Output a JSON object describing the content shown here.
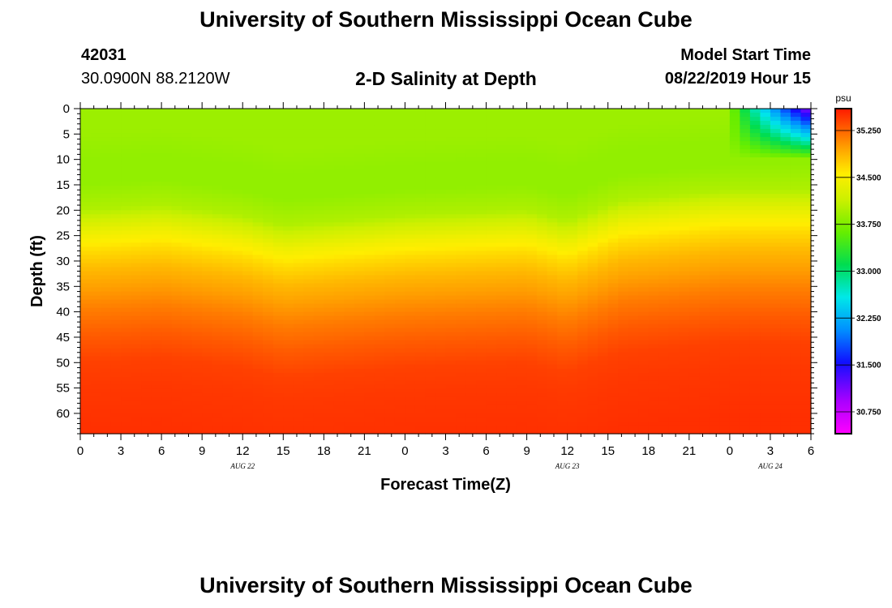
{
  "page_title": "University of Southern Mississippi Ocean Cube",
  "footer_title": "University of Southern Mississippi Ocean Cube",
  "station": {
    "id": "42031",
    "coords": "30.0900N 88.2120W"
  },
  "model": {
    "label": "Model Start Time",
    "start": "08/22/2019 Hour 15"
  },
  "chart_data": {
    "type": "heatmap",
    "title": "2-D Salinity at Depth",
    "xlabel": "Forecast Time(Z)",
    "ylabel": "Depth (ft)",
    "x_tick_labels": [
      "0",
      "3",
      "6",
      "9",
      "12",
      "15",
      "18",
      "21",
      "0",
      "3",
      "6",
      "9",
      "12",
      "15",
      "18",
      "21",
      "0",
      "3",
      "6"
    ],
    "x_hours_from_start": [
      0,
      3,
      6,
      9,
      12,
      15,
      18,
      21,
      24,
      27,
      30,
      33,
      36,
      39,
      42,
      45,
      48,
      51,
      54
    ],
    "date_labels": [
      {
        "label": "AUG 22",
        "hour": 12
      },
      {
        "label": "AUG 23",
        "hour": 36
      },
      {
        "label": "AUG 24",
        "hour": 51
      }
    ],
    "xlim_hours": [
      0,
      54
    ],
    "y_ticks": [
      0,
      5,
      10,
      15,
      20,
      25,
      30,
      35,
      40,
      45,
      50,
      55,
      60
    ],
    "ylim_ft": [
      0,
      64
    ],
    "y_inverted": true,
    "colorbar": {
      "unit": "psu",
      "ticks": [
        "35.250",
        "34.500",
        "33.750",
        "33.000",
        "32.250",
        "31.500",
        "30.750"
      ],
      "tick_values": [
        35.25,
        34.5,
        33.75,
        33.0,
        32.25,
        31.5,
        30.75
      ],
      "range": [
        30.4,
        35.6
      ]
    },
    "salinity_profile_by_depth": [
      {
        "depth_ft": 0,
        "psu": 33.9
      },
      {
        "depth_ft": 5,
        "psu": 33.9
      },
      {
        "depth_ft": 10,
        "psu": 33.85
      },
      {
        "depth_ft": 15,
        "psu": 33.85
      },
      {
        "depth_ft": 20,
        "psu": 34.0
      },
      {
        "depth_ft": 25,
        "psu": 34.45
      },
      {
        "depth_ft": 28,
        "psu": 34.65
      },
      {
        "depth_ft": 32,
        "psu": 34.85
      },
      {
        "depth_ft": 36,
        "psu": 35.0
      },
      {
        "depth_ft": 40,
        "psu": 35.15
      },
      {
        "depth_ft": 45,
        "psu": 35.3
      },
      {
        "depth_ft": 50,
        "psu": 35.42
      },
      {
        "depth_ft": 55,
        "psu": 35.46
      },
      {
        "depth_ft": 64,
        "psu": 35.5
      }
    ],
    "halocline_depth_ft_by_hour": [
      {
        "hour": 0,
        "depth_ft": 28
      },
      {
        "hour": 6,
        "depth_ft": 27
      },
      {
        "hour": 12,
        "depth_ft": 29
      },
      {
        "hour": 15,
        "depth_ft": 31
      },
      {
        "hour": 24,
        "depth_ft": 29
      },
      {
        "hour": 33,
        "depth_ft": 28
      },
      {
        "hour": 36,
        "depth_ft": 30
      },
      {
        "hour": 40,
        "depth_ft": 26
      },
      {
        "hour": 48,
        "depth_ft": 24
      },
      {
        "hour": 54,
        "depth_ft": 24
      }
    ],
    "fresh_plume": {
      "start_hour": 48,
      "surface_min_psu": 31.0,
      "max_depth_ft": 10
    },
    "grid": true
  }
}
